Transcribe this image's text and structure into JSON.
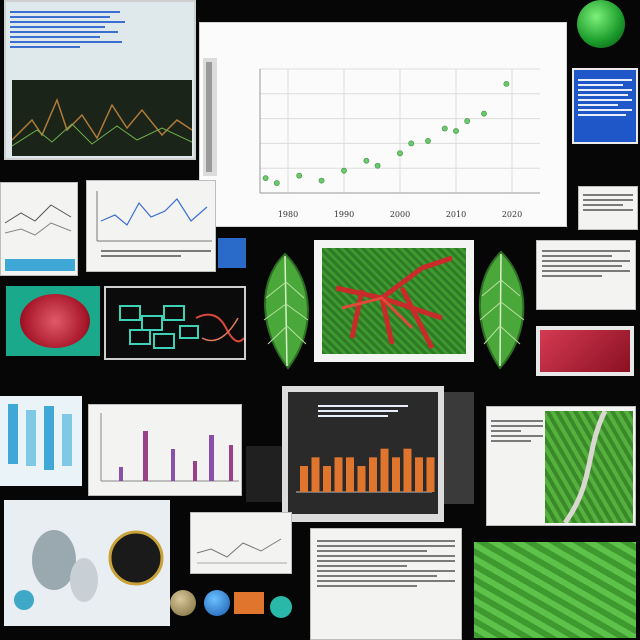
{
  "chart_data": {
    "type": "scatter",
    "title": "",
    "xlabel": "",
    "ylabel": "",
    "ylim": [
      1,
      6
    ],
    "x_ticks": [
      "1980",
      "1990",
      "2000",
      "2010",
      "2020"
    ],
    "xlim": [
      1975,
      2025
    ],
    "series": [
      {
        "values": [
          {
            "x": 1976,
            "y": 1.6
          },
          {
            "x": 1978,
            "y": 1.4
          },
          {
            "x": 1982,
            "y": 1.7
          },
          {
            "x": 1986,
            "y": 1.5
          },
          {
            "x": 1990,
            "y": 1.9
          },
          {
            "x": 1994,
            "y": 2.3
          },
          {
            "x": 1996,
            "y": 2.1
          },
          {
            "x": 2000,
            "y": 2.6
          },
          {
            "x": 2002,
            "y": 3.0
          },
          {
            "x": 2005,
            "y": 3.1
          },
          {
            "x": 2008,
            "y": 3.6
          },
          {
            "x": 2010,
            "y": 3.5
          },
          {
            "x": 2012,
            "y": 3.9
          },
          {
            "x": 2015,
            "y": 4.2
          },
          {
            "x": 2019,
            "y": 5.4
          }
        ]
      }
    ],
    "grid": true,
    "marker_color": "#69c96b"
  },
  "colors": {
    "background": "#060606",
    "leaf_green": "#3e9a2e",
    "accent_blue": "#1f57c9",
    "bar_orange": "#e0762e",
    "gem_red": "#c21f3a"
  },
  "mini_bar_chart": {
    "values": [
      3,
      4,
      3,
      4,
      4,
      3,
      4,
      5,
      4,
      5,
      4,
      4
    ]
  }
}
